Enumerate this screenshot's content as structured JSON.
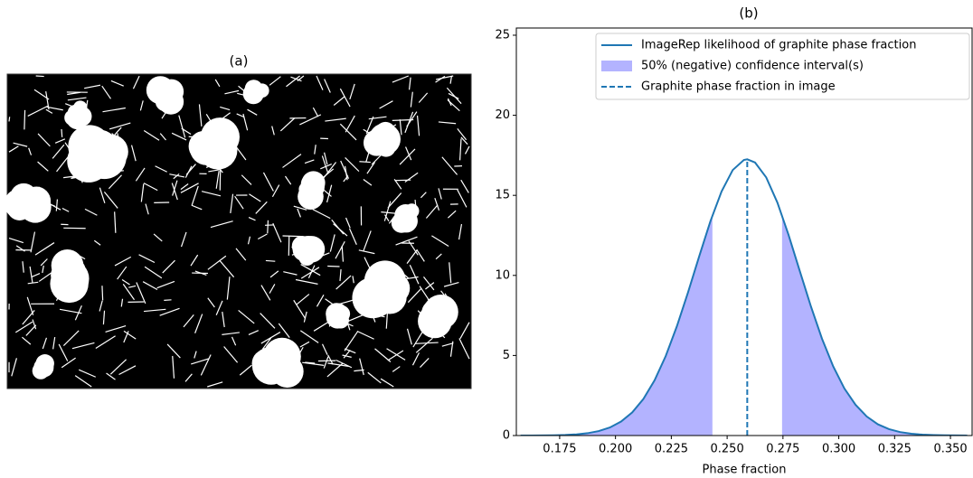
{
  "panel_a": {
    "title": "(a)"
  },
  "chart_data": {
    "type": "line",
    "title": "(b)",
    "x_label": "Phase fraction",
    "x": [
      0.1575,
      0.1625,
      0.1675,
      0.1725,
      0.1775,
      0.1825,
      0.1875,
      0.1925,
      0.1975,
      0.2025,
      0.2075,
      0.2125,
      0.2175,
      0.2225,
      0.2275,
      0.2325,
      0.2375,
      0.2425,
      0.2475,
      0.2525,
      0.2575,
      0.259,
      0.2625,
      0.2675,
      0.2725,
      0.2775,
      0.2825,
      0.2875,
      0.2925,
      0.2975,
      0.3025,
      0.3075,
      0.3125,
      0.3175,
      0.3225,
      0.3275,
      0.3325,
      0.3375,
      0.3425,
      0.3475,
      0.3525,
      0.3575
    ],
    "series": [
      {
        "name": "ImageRep likelihood of graphite phase fraction",
        "color": "#1f77b4",
        "values": [
          0.001,
          0.003,
          0.007,
          0.016,
          0.035,
          0.073,
          0.145,
          0.277,
          0.503,
          0.874,
          1.446,
          2.285,
          3.448,
          4.966,
          6.826,
          8.951,
          11.2,
          13.38,
          15.24,
          16.58,
          17.21,
          17.25,
          17.05,
          16.12,
          14.55,
          12.53,
          10.29,
          8.07,
          6.04,
          4.32,
          2.94,
          1.92,
          1.19,
          0.7,
          0.4,
          0.215,
          0.111,
          0.054,
          0.026,
          0.011,
          0.005,
          0.002
        ]
      }
    ],
    "interval": {
      "name": "50% (negative) confidence interval(s)",
      "color": "#b3b3ff",
      "bounds": [
        0.2434,
        0.2746
      ]
    },
    "marker": {
      "name": "Graphite phase fraction in image",
      "color": "#1f77b4",
      "x": 0.259
    },
    "xlim": [
      0.1556,
      0.3601
    ],
    "ylim": [
      0,
      25.45
    ],
    "xticks": [
      0.175,
      {
        "value": 0.2,
        "label": "0.200"
      },
      0.225,
      {
        "value": 0.25,
        "label": "0.250"
      },
      0.275,
      {
        "value": 0.3,
        "label": "0.300"
      },
      0.325,
      {
        "value": 0.35,
        "label": "0.350"
      }
    ],
    "yticks": [
      0,
      5,
      10,
      15,
      20,
      25
    ],
    "legend": "upper right"
  }
}
